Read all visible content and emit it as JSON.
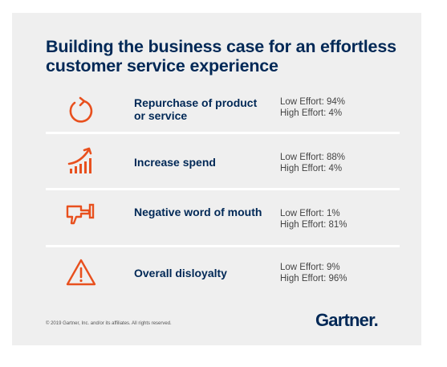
{
  "title": "Building the business case for an effortless customer service experience",
  "accent_color": "#e8501e",
  "title_color": "#002856",
  "rows": [
    {
      "icon": "repurchase-cycle-icon",
      "label": "Repurchase of product or service",
      "low": "Low Effort: 94%",
      "high": "High Effort: 4%"
    },
    {
      "icon": "increase-spend-chart-icon",
      "label": "Increase spend",
      "low": "Low Effort: 88%",
      "high": "High Effort: 4%"
    },
    {
      "icon": "thumbs-down-icon",
      "label": "Negative word of mouth",
      "low": "Low Effort: 1%",
      "high": "High Effort: 81%"
    },
    {
      "icon": "warning-triangle-icon",
      "label": "Overall disloyalty",
      "low": "Low Effort: 9%",
      "high": "High Effort: 96%"
    }
  ],
  "footer": {
    "copyright": "© 2019 Gartner, Inc. and/or its affiliates. All rights reserved.",
    "logo": "Gartner"
  }
}
